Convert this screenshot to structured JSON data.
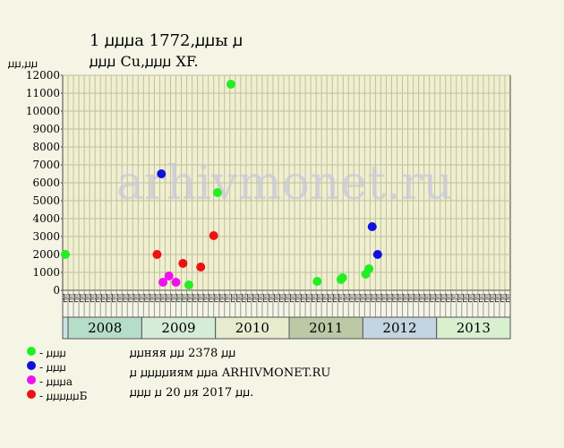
{
  "header": {
    "title_line1": "1 ꙡꙡꙡа 1772,ꙡꙡы ꙡ",
    "title_line2": "ꙡꙡꙡ Cu,ꙡꙡꙡ XF.",
    "unit_label": "ꙡꙡ,ꙡꙡ"
  },
  "watermark": "arhivmonet.ru",
  "legend": [
    {
      "label": "- ꙡꙡꙡ",
      "color": "#22ee22"
    },
    {
      "label": "- ꙡꙡꙡ",
      "color": "#1111dd"
    },
    {
      "label": "- ꙡꙡꙡа",
      "color": "#ee11ee"
    },
    {
      "label": "- ꙡꙡꙡꙡꙡБ",
      "color": "#ee1111"
    }
  ],
  "notes": [
    "ꙡꙡняя ꙡꙡ 2378 ꙡꙡ",
    "ꙡ ꙡꙡꙡꙡиям ꙡꙡа ARHIVMONET.RU",
    "ꙡꙡꙡ ꙡ 20 ꙡя 2017 ꙡꙡ."
  ],
  "chart_data": {
    "type": "scatter",
    "y_ticks": [
      "0",
      "1000",
      "2000",
      "3000",
      "4000",
      "5000",
      "6000",
      "7000",
      "8000",
      "9000",
      "10000",
      "11000",
      "12000"
    ],
    "ylim": [
      0,
      12000
    ],
    "grid": true,
    "months": [
      "ꙡꙡ",
      "ꙡꙡ",
      "ꙡꙡ",
      "ꙡꙡ",
      "ꙡꙡ",
      "ꙡꙡ",
      "ꙡꙡ",
      "ꙡꙡ",
      "ꙡꙡ",
      "ꙡꙡ",
      "ꙡꙡ",
      "ꙡꙡ"
    ],
    "years": [
      {
        "label": "",
        "color": "#c9e3e2"
      },
      {
        "label": "2008",
        "color": "#b6ddc8"
      },
      {
        "label": "2009",
        "color": "#d5ecd8"
      },
      {
        "label": "2010",
        "color": "#e6eccd"
      },
      {
        "label": "2011",
        "color": "#bcc9a6"
      },
      {
        "label": "2012",
        "color": "#c2d5e0"
      },
      {
        "label": "2013",
        "color": "#d8f0cf"
      }
    ],
    "points": [
      {
        "x": 0.5,
        "y": 2000,
        "color": "#22ee22"
      },
      {
        "x": 17.5,
        "y": 2000,
        "color": "#ee1111"
      },
      {
        "x": 18.3,
        "y": 6500,
        "color": "#1111dd"
      },
      {
        "x": 18.6,
        "y": 450,
        "color": "#ee11ee"
      },
      {
        "x": 19.7,
        "y": 800,
        "color": "#ee11ee"
      },
      {
        "x": 21.0,
        "y": 450,
        "color": "#ee11ee"
      },
      {
        "x": 22.3,
        "y": 1500,
        "color": "#ee1111"
      },
      {
        "x": 23.4,
        "y": 300,
        "color": "#22ee22"
      },
      {
        "x": 25.6,
        "y": 1300,
        "color": "#ee1111"
      },
      {
        "x": 28.0,
        "y": 3050,
        "color": "#ee1111"
      },
      {
        "x": 28.7,
        "y": 5450,
        "color": "#22ee22"
      },
      {
        "x": 31.2,
        "y": 11500,
        "color": "#22ee22"
      },
      {
        "x": 47.2,
        "y": 500,
        "color": "#22ee22"
      },
      {
        "x": 51.6,
        "y": 600,
        "color": "#22ee22"
      },
      {
        "x": 51.9,
        "y": 700,
        "color": "#22ee22"
      },
      {
        "x": 56.2,
        "y": 900,
        "color": "#22ee22"
      },
      {
        "x": 56.8,
        "y": 1200,
        "color": "#22ee22"
      },
      {
        "x": 57.4,
        "y": 3550,
        "color": "#1111dd"
      },
      {
        "x": 58.4,
        "y": 2000,
        "color": "#1111dd"
      }
    ]
  }
}
